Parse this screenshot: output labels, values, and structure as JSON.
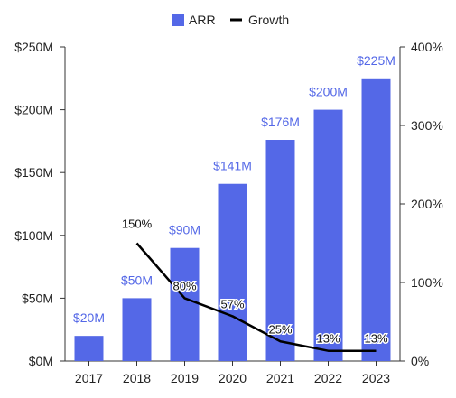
{
  "chart_data": {
    "type": "bar",
    "categories": [
      "2017",
      "2018",
      "2019",
      "2020",
      "2021",
      "2022",
      "2023"
    ],
    "series": [
      {
        "name": "ARR",
        "type": "bar",
        "axis": "left",
        "values": [
          20,
          50,
          90,
          141,
          176,
          200,
          225
        ],
        "labels": [
          "$20M",
          "$50M",
          "$90M",
          "$141M",
          "$176M",
          "$200M",
          "$225M"
        ],
        "color": "#5468E7"
      },
      {
        "name": "Growth",
        "type": "line",
        "axis": "right",
        "values": [
          null,
          150,
          80,
          57,
          25,
          13,
          13
        ],
        "labels": [
          "",
          "150%",
          "80%",
          "57%",
          "25%",
          "13%",
          "13%"
        ],
        "color": "#000000"
      }
    ],
    "y_left": {
      "ylim": [
        0,
        250
      ],
      "ticks": [
        0,
        50,
        100,
        150,
        200,
        250
      ],
      "tick_labels": [
        "$0M",
        "$50M",
        "$100M",
        "$150M",
        "$200M",
        "$250M"
      ]
    },
    "y_right": {
      "ylim": [
        0,
        400
      ],
      "ticks": [
        0,
        100,
        200,
        300,
        400
      ],
      "tick_labels": [
        "0%",
        "100%",
        "200%",
        "300%",
        "400%"
      ]
    },
    "title": "",
    "xlabel": "",
    "ylabel": "",
    "grid": false,
    "legend_position": "top-center",
    "colors": {
      "bar": "#5468E7",
      "bar_label": "#5468E7",
      "line": "#000000",
      "axis": "#333333",
      "text": "#222222"
    }
  }
}
